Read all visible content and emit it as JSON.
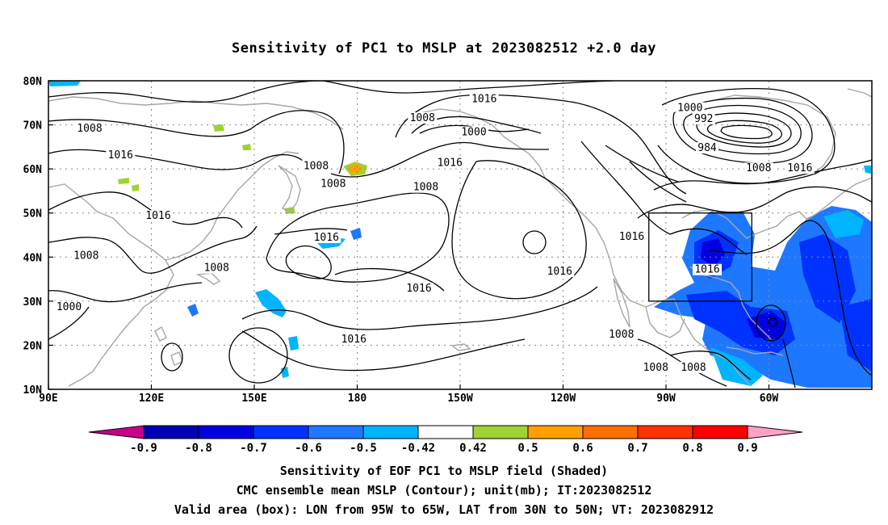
{
  "title": "Sensitivity of PC1 to MSLP at 2023082512 +2.0 day",
  "lat_labels": [
    "80N",
    "70N",
    "60N",
    "50N",
    "40N",
    "30N",
    "20N",
    "10N"
  ],
  "lon_labels": [
    "90E",
    "120E",
    "150E",
    "180",
    "150W",
    "120W",
    "90W",
    "60W"
  ],
  "contour_labels": [
    {
      "text": "1016",
      "lon": -143,
      "lat": 75.5
    },
    {
      "text": "1008",
      "lon": -161,
      "lat": 71.2
    },
    {
      "text": "1000",
      "lon": -146,
      "lat": 68.0
    },
    {
      "text": "1016",
      "lon": -153,
      "lat": 61.0
    },
    {
      "text": "1008",
      "lon": -160,
      "lat": 55.5
    },
    {
      "text": "1008",
      "lon": 102,
      "lat": 68.8
    },
    {
      "text": "1016",
      "lon": 111,
      "lat": 62.8
    },
    {
      "text": "1008",
      "lon": 168,
      "lat": 60.3
    },
    {
      "text": "1008",
      "lon": 173,
      "lat": 56.3
    },
    {
      "text": "1016",
      "lon": 122,
      "lat": 49.0
    },
    {
      "text": "1008",
      "lon": 101,
      "lat": 40.0
    },
    {
      "text": "1008",
      "lon": 139,
      "lat": 37.2
    },
    {
      "text": "1000",
      "lon": 96,
      "lat": 28.3
    },
    {
      "text": "1016",
      "lon": 171,
      "lat": 44.1
    },
    {
      "text": "1016",
      "lon": -162,
      "lat": 32.5
    },
    {
      "text": "1016",
      "lon": 179,
      "lat": 21.0
    },
    {
      "text": "1016",
      "lon": -121,
      "lat": 36.4
    },
    {
      "text": "1016",
      "lon": -100,
      "lat": 44.3
    },
    {
      "text": "1016",
      "lon": -78,
      "lat": 36.8
    },
    {
      "text": "1008",
      "lon": -103,
      "lat": 22.1
    },
    {
      "text": "1008",
      "lon": -93,
      "lat": 14.6
    },
    {
      "text": "1008",
      "lon": -82,
      "lat": 14.6
    },
    {
      "text": "1000",
      "lon": -83,
      "lat": 73.5
    },
    {
      "text": "992",
      "lon": -79,
      "lat": 71.0
    },
    {
      "text": "984",
      "lon": -78,
      "lat": 64.4
    },
    {
      "text": "1008",
      "lon": -63,
      "lat": 59.8
    },
    {
      "text": "1016",
      "lon": -51,
      "lat": 59.8
    }
  ],
  "colorbar": {
    "labels": [
      "-0.9",
      "-0.8",
      "-0.7",
      "-0.6",
      "-0.5",
      "-0.42",
      "0.42",
      "0.5",
      "0.6",
      "0.7",
      "0.8",
      "0.9"
    ],
    "colors": [
      "#0000b4",
      "#0000e0",
      "#0032ff",
      "#1e78ff",
      "#00b4ff",
      "#ffffff",
      "#a0d232",
      "#ffa000",
      "#ff6e00",
      "#ff3200",
      "#ff0000"
    ],
    "low_end_color": "#c8008c",
    "high_end_color": "#ffa0c8"
  },
  "valid_box": {
    "lon_min": -95,
    "lon_max": -65,
    "lat_min": 30,
    "lat_max": 50
  },
  "footer": {
    "line1": "Sensitivity of EOF PC1 to MSLP field (Shaded)",
    "line2": "CMC ensemble mean MSLP (Contour); unit(mb); IT:2023082512",
    "line3": "Valid area (box): LON from 95W to 65W, LAT from 30N to 50N; VT: 2023082912"
  }
}
